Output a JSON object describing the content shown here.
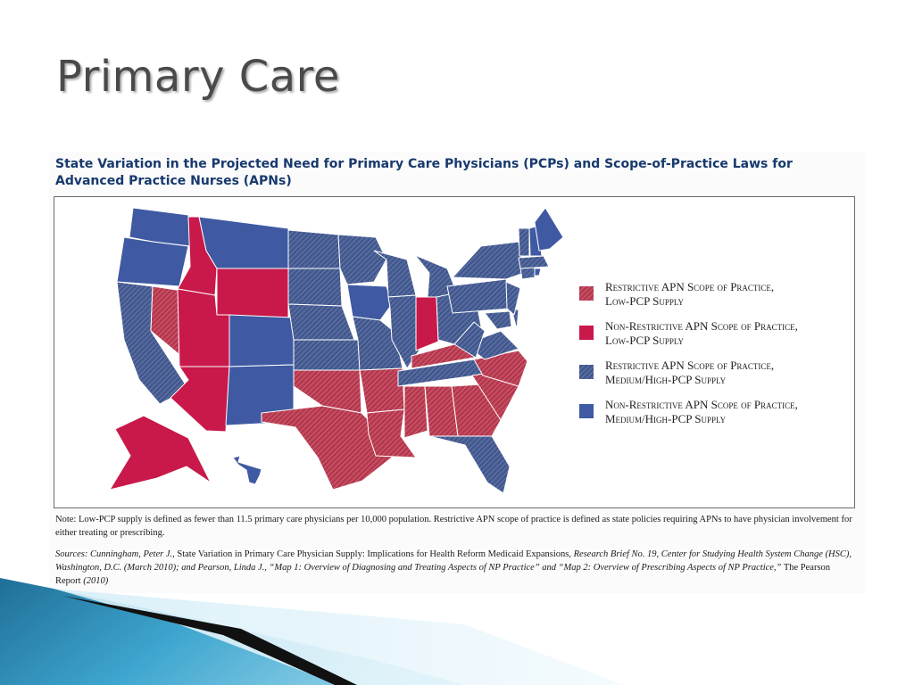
{
  "slide": {
    "title": "Primary Care"
  },
  "figure": {
    "title": "State Variation in the Projected Need for Primary Care Physicians (PCPs) and Scope-of-Practice Laws for Advanced Practice Nurses (APNs)",
    "note": "Note: Low-PCP supply is defined as fewer than 11.5 primary care physicians per 10,000 population. Restrictive APN scope of practice is defined as state policies requiring APNs to have physician involvement for either treating or prescribing.",
    "sources": {
      "s1": "Sources: Cunningham, Peter J.,",
      "s2": " State Variation in Primary Care Physician Supply: Implications for Health Reform Medicaid Expansions, ",
      "s3": "Research Brief No. 19, Center for Studying Health System Change (HSC), Washington, D.C. (March 2010); and Pearson, Linda J., “Map 1: Overview of Diagnosing and Treating Aspects of NP Practice” and “Map 2: Overview of Prescribing Aspects of NP Practice,”",
      "s4": " The Pearson Report ",
      "s5": "(2010)"
    }
  },
  "colors": {
    "restrictive_low": "#b5384f",
    "nonrestrictive_low": "#c8194a",
    "restrictive_medium_high": "#42588e",
    "nonrestrictive_medium_high": "#3f5aa2",
    "title_blue": "#17396d"
  },
  "legend": [
    {
      "key": "restrictive_low",
      "label": "Restrictive APN Scope of Practice,\nLow-PCP Supply",
      "pattern": "hatched-red"
    },
    {
      "key": "nonrestrictive_low",
      "label": "Non-Restrictive APN Scope of Practice,\nLow-PCP Supply",
      "pattern": "solid-red"
    },
    {
      "key": "restrictive_medium_high",
      "label": "Restrictive APN Scope of Practice,\nMedium/High-PCP Supply",
      "pattern": "hatched-blue"
    },
    {
      "key": "nonrestrictive_medium_high",
      "label": "Non-Restrictive APN Scope of Practice,\nMedium/High-PCP Supply",
      "pattern": "solid-blue"
    }
  ],
  "states": [
    {
      "id": "WA",
      "cat": "nonrestrictive_medium_high"
    },
    {
      "id": "OR",
      "cat": "nonrestrictive_medium_high"
    },
    {
      "id": "CA",
      "cat": "restrictive_medium_high"
    },
    {
      "id": "NV",
      "cat": "restrictive_low"
    },
    {
      "id": "ID",
      "cat": "nonrestrictive_low"
    },
    {
      "id": "MT",
      "cat": "nonrestrictive_medium_high"
    },
    {
      "id": "WY",
      "cat": "nonrestrictive_low"
    },
    {
      "id": "UT",
      "cat": "nonrestrictive_low"
    },
    {
      "id": "AZ",
      "cat": "nonrestrictive_low"
    },
    {
      "id": "CO",
      "cat": "nonrestrictive_medium_high"
    },
    {
      "id": "NM",
      "cat": "nonrestrictive_medium_high"
    },
    {
      "id": "ND",
      "cat": "restrictive_medium_high"
    },
    {
      "id": "SD",
      "cat": "restrictive_medium_high"
    },
    {
      "id": "NE",
      "cat": "restrictive_medium_high"
    },
    {
      "id": "KS",
      "cat": "restrictive_medium_high"
    },
    {
      "id": "OK",
      "cat": "restrictive_low"
    },
    {
      "id": "TX",
      "cat": "restrictive_low"
    },
    {
      "id": "MN",
      "cat": "restrictive_medium_high"
    },
    {
      "id": "IA",
      "cat": "nonrestrictive_medium_high"
    },
    {
      "id": "MO",
      "cat": "restrictive_medium_high"
    },
    {
      "id": "AR",
      "cat": "restrictive_low"
    },
    {
      "id": "LA",
      "cat": "restrictive_low"
    },
    {
      "id": "WI",
      "cat": "restrictive_medium_high"
    },
    {
      "id": "IL",
      "cat": "restrictive_medium_high"
    },
    {
      "id": "MI",
      "cat": "restrictive_medium_high"
    },
    {
      "id": "IN",
      "cat": "nonrestrictive_low"
    },
    {
      "id": "OH",
      "cat": "restrictive_medium_high"
    },
    {
      "id": "KY",
      "cat": "restrictive_low"
    },
    {
      "id": "TN",
      "cat": "restrictive_medium_high"
    },
    {
      "id": "MS",
      "cat": "restrictive_low"
    },
    {
      "id": "AL",
      "cat": "restrictive_low"
    },
    {
      "id": "GA",
      "cat": "restrictive_low"
    },
    {
      "id": "FL",
      "cat": "restrictive_medium_high"
    },
    {
      "id": "SC",
      "cat": "restrictive_low"
    },
    {
      "id": "NC",
      "cat": "restrictive_low"
    },
    {
      "id": "VA",
      "cat": "restrictive_medium_high"
    },
    {
      "id": "WV",
      "cat": "restrictive_medium_high"
    },
    {
      "id": "PA",
      "cat": "restrictive_medium_high"
    },
    {
      "id": "NY",
      "cat": "restrictive_medium_high"
    },
    {
      "id": "MD",
      "cat": "restrictive_medium_high"
    },
    {
      "id": "DE",
      "cat": "restrictive_medium_high"
    },
    {
      "id": "NJ",
      "cat": "restrictive_medium_high"
    },
    {
      "id": "CT",
      "cat": "restrictive_medium_high"
    },
    {
      "id": "RI",
      "cat": "nonrestrictive_medium_high"
    },
    {
      "id": "MA",
      "cat": "restrictive_medium_high"
    },
    {
      "id": "VT",
      "cat": "restrictive_medium_high"
    },
    {
      "id": "NH",
      "cat": "nonrestrictive_medium_high"
    },
    {
      "id": "ME",
      "cat": "nonrestrictive_medium_high"
    },
    {
      "id": "AK",
      "cat": "nonrestrictive_low"
    },
    {
      "id": "HI",
      "cat": "nonrestrictive_medium_high"
    }
  ]
}
